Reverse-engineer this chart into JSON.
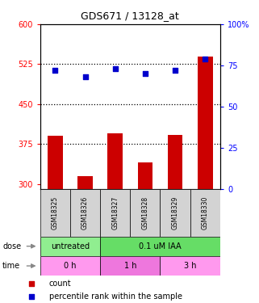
{
  "title": "GDS671 / 13128_at",
  "samples": [
    "GSM18325",
    "GSM18326",
    "GSM18327",
    "GSM18328",
    "GSM18329",
    "GSM18330"
  ],
  "bar_values": [
    390,
    315,
    395,
    340,
    392,
    540
  ],
  "scatter_values": [
    72,
    68,
    73,
    70,
    72,
    79
  ],
  "bar_color": "#cc0000",
  "scatter_color": "#0000cc",
  "ylim_left": [
    290,
    600
  ],
  "ylim_right": [
    0,
    100
  ],
  "yticks_left": [
    300,
    375,
    450,
    525,
    600
  ],
  "yticks_right": [
    0,
    25,
    50,
    75,
    100
  ],
  "hlines": [
    375,
    450,
    525
  ],
  "dose_labels": [
    {
      "text": "untreated",
      "start": 0,
      "end": 2,
      "color": "#90ee90"
    },
    {
      "text": "0.1 uM IAA",
      "start": 2,
      "end": 6,
      "color": "#66dd66"
    }
  ],
  "time_labels": [
    {
      "text": "0 h",
      "start": 0,
      "end": 2,
      "color": "#ff99ee"
    },
    {
      "text": "1 h",
      "start": 2,
      "end": 4,
      "color": "#ee77dd"
    },
    {
      "text": "3 h",
      "start": 4,
      "end": 6,
      "color": "#ff99ee"
    }
  ],
  "dose_arrow_label": "dose",
  "time_arrow_label": "time",
  "legend_count_label": "count",
  "legend_pct_label": "percentile rank within the sample",
  "sample_bg": "#d3d3d3",
  "plot_bg": "#ffffff"
}
